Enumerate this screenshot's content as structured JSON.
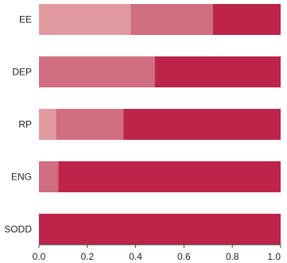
{
  "chart_data": {
    "type": "bar",
    "orientation": "horizontal",
    "stacked": true,
    "categories": [
      "EE",
      "DEP",
      "RP",
      "ENG",
      "SODD"
    ],
    "series": [
      {
        "values": [
          0.38,
          0.0,
          0.07,
          0.0,
          0.0
        ],
        "color": "#e09aa0"
      },
      {
        "values": [
          0.34,
          0.48,
          0.28,
          0.08,
          0.0
        ],
        "color": "#cf6e80"
      },
      {
        "values": [
          0.28,
          0.52,
          0.65,
          0.92,
          1.0
        ],
        "color": "#bc2449"
      }
    ],
    "xlim": [
      0,
      1.0
    ],
    "xticks": [
      "0.0",
      "0.2",
      "0.4",
      "0.6",
      "0.8",
      "1.0"
    ],
    "xlabel": "",
    "ylabel": "",
    "title": "",
    "grid": false,
    "legend": "none"
  }
}
